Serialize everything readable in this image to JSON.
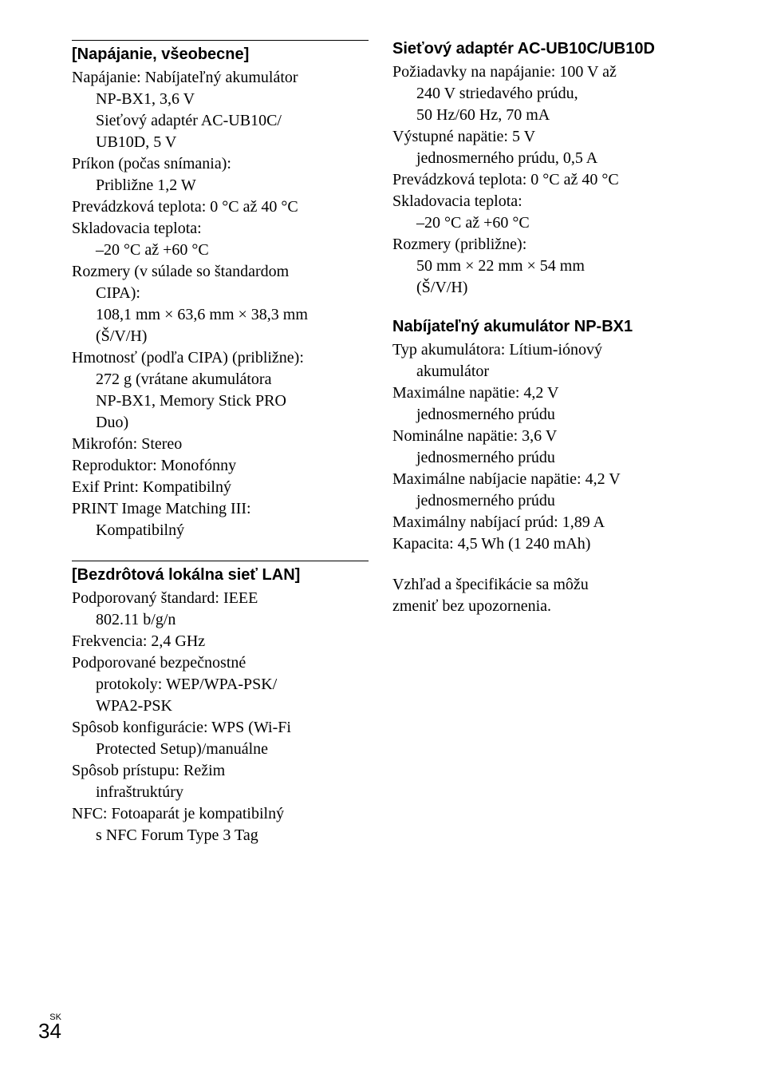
{
  "leftColumn": {
    "section1": {
      "heading": "[Napájanie, všeobecne]",
      "lines": [
        {
          "text": "Napájanie: Nabíjateľný akumulátor",
          "indent": false
        },
        {
          "text": "NP-BX1, 3,6 V",
          "indent": true
        },
        {
          "text": "Sieťový adaptér AC-UB10C/",
          "indent": true
        },
        {
          "text": "UB10D, 5 V",
          "indent": true
        },
        {
          "text": "Príkon (počas snímania):",
          "indent": false
        },
        {
          "text": "Približne 1,2 W",
          "indent": true
        },
        {
          "text": "Prevádzková teplota: 0 °C až 40 °C",
          "indent": false
        },
        {
          "text": "Skladovacia teplota:",
          "indent": false
        },
        {
          "text": "–20 °C až +60 °C",
          "indent": true
        },
        {
          "text": "Rozmery (v súlade so štandardom",
          "indent": false
        },
        {
          "text": "CIPA):",
          "indent": true
        },
        {
          "text": "108,1 mm × 63,6 mm × 38,3 mm",
          "indent": true
        },
        {
          "text": "(Š/V/H)",
          "indent": true
        },
        {
          "text": "Hmotnosť (podľa CIPA) (približne):",
          "indent": false
        },
        {
          "text": "272 g (vrátane akumulátora",
          "indent": true
        },
        {
          "text": "NP-BX1, Memory Stick PRO",
          "indent": true
        },
        {
          "text": "Duo)",
          "indent": true
        },
        {
          "text": "Mikrofón: Stereo",
          "indent": false
        },
        {
          "text": "Reproduktor: Monofónny",
          "indent": false
        },
        {
          "text": "Exif Print: Kompatibilný",
          "indent": false
        },
        {
          "text": "PRINT Image Matching III:",
          "indent": false
        },
        {
          "text": "Kompatibilný",
          "indent": true
        }
      ]
    },
    "section2": {
      "heading": "[Bezdrôtová lokálna sieť LAN]",
      "lines": [
        {
          "text": "Podporovaný štandard: IEEE",
          "indent": false
        },
        {
          "text": "802.11 b/g/n",
          "indent": true
        },
        {
          "text": "Frekvencia: 2,4 GHz",
          "indent": false
        },
        {
          "text": "Podporované bezpečnostné",
          "indent": false
        },
        {
          "text": "protokoly: WEP/WPA-PSK/",
          "indent": true
        },
        {
          "text": "WPA2-PSK",
          "indent": true
        },
        {
          "text": "Spôsob konfigurácie: WPS (Wi-Fi",
          "indent": false
        },
        {
          "text": "Protected Setup)/manuálne",
          "indent": true
        },
        {
          "text": "Spôsob prístupu: Režim",
          "indent": false
        },
        {
          "text": "infraštruktúry",
          "indent": true
        },
        {
          "text": "NFC: Fotoaparát je kompatibilný",
          "indent": false
        },
        {
          "text": "s NFC Forum Type 3 Tag",
          "indent": true
        }
      ]
    }
  },
  "rightColumn": {
    "section1": {
      "heading": "Sieťový adaptér AC-UB10C/UB10D",
      "lines": [
        {
          "text": "Požiadavky na napájanie: 100 V až",
          "indent": false
        },
        {
          "text": "240 V striedavého prúdu,",
          "indent": true
        },
        {
          "text": "50 Hz/60 Hz, 70 mA",
          "indent": true
        },
        {
          "text": "Výstupné napätie: 5 V",
          "indent": false
        },
        {
          "text": "jednosmerného prúdu, 0,5 A",
          "indent": true
        },
        {
          "text": "Prevádzková teplota: 0 °C až 40 °C",
          "indent": false
        },
        {
          "text": "Skladovacia teplota:",
          "indent": false
        },
        {
          "text": "–20 °C až +60 °C",
          "indent": true
        },
        {
          "text": "Rozmery (približne):",
          "indent": false
        },
        {
          "text": "50 mm × 22 mm × 54 mm",
          "indent": true
        },
        {
          "text": "(Š/V/H)",
          "indent": true
        }
      ]
    },
    "section2": {
      "heading": "Nabíjateľný akumulátor NP-BX1",
      "lines": [
        {
          "text": "Typ akumulátora: Lítium-iónový",
          "indent": false
        },
        {
          "text": "akumulátor",
          "indent": true
        },
        {
          "text": "Maximálne napätie: 4,2 V",
          "indent": false
        },
        {
          "text": "jednosmerného prúdu",
          "indent": true
        },
        {
          "text": "Nominálne napätie: 3,6 V",
          "indent": false
        },
        {
          "text": "jednosmerného prúdu",
          "indent": true
        },
        {
          "text": "Maximálne nabíjacie napätie: 4,2 V",
          "indent": false
        },
        {
          "text": "jednosmerného prúdu",
          "indent": true
        },
        {
          "text": "Maximálny nabíjací prúd: 1,89 A",
          "indent": false
        },
        {
          "text": "Kapacita: 4,5 Wh (1 240 mAh)",
          "indent": false
        }
      ]
    },
    "note": {
      "lines": [
        {
          "text": "Vzhľad a špecifikácie sa môžu",
          "indent": false
        },
        {
          "text": "zmeniť bez upozornenia.",
          "indent": false
        }
      ]
    }
  },
  "footer": {
    "lang": "SK",
    "page": "34"
  }
}
